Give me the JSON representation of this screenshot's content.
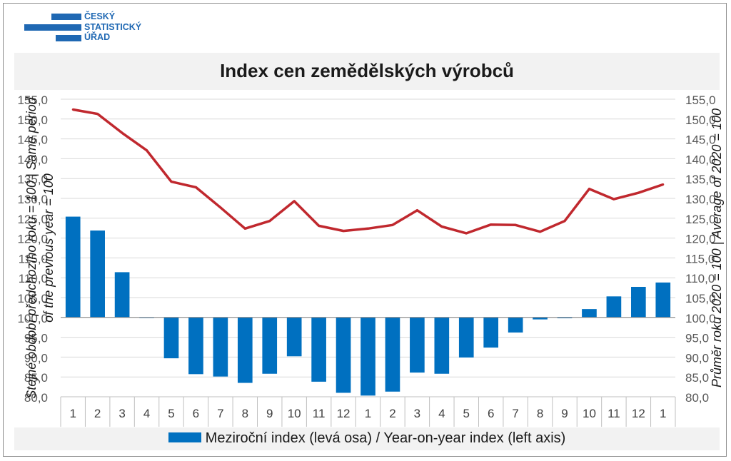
{
  "logo": {
    "lines": [
      "ČESKÝ",
      "STATISTICKÝ",
      "ÚŘAD"
    ]
  },
  "colors": {
    "bars": "#0070c0",
    "line": "#c0282e",
    "grid": "#d9d9d9",
    "band": "#f2f2f2"
  },
  "chart_data": {
    "type": "bar",
    "title": "Index cen zemědělských výrobců",
    "categories": [
      "1",
      "2",
      "3",
      "4",
      "5",
      "6",
      "7",
      "8",
      "9",
      "10",
      "11",
      "12",
      "1",
      "2",
      "3",
      "4",
      "5",
      "6",
      "7",
      "8",
      "9",
      "10",
      "11",
      "12",
      "1"
    ],
    "series": [
      {
        "name": "Meziroční index (levá osa) / Year-on-year index (left axis)",
        "type": "bar",
        "axis": "left",
        "values": [
          125.4,
          121.9,
          111.4,
          100.0,
          89.7,
          85.7,
          85.1,
          83.5,
          85.8,
          90.2,
          83.8,
          81.0,
          80.3,
          81.3,
          86.1,
          85.8,
          89.9,
          92.4,
          96.2,
          99.5,
          99.8,
          102.1,
          105.3,
          107.7,
          108.8
        ]
      },
      {
        "name": "",
        "type": "line",
        "axis": "right",
        "values": [
          152.4,
          151.3,
          146.5,
          142.1,
          134.2,
          132.8,
          127.7,
          122.4,
          124.3,
          129.3,
          123.1,
          121.8,
          122.4,
          123.3,
          127.0,
          122.9,
          121.2,
          123.4,
          123.3,
          121.6,
          124.3,
          132.4,
          129.8,
          131.4,
          133.5
        ]
      }
    ],
    "ylim_left": [
      80,
      155
    ],
    "ylim_right": [
      80,
      155
    ],
    "y_ticks_left": [
      "80,0",
      "85,0",
      "90,0",
      "95,0",
      "100,0",
      "105,0",
      "110,0",
      "115,0",
      "120,0",
      "125,0",
      "130,0",
      "135,0",
      "140,0",
      "145,0",
      "150,0",
      "155,0"
    ],
    "y_ticks_right": [
      "80,0",
      "85,0",
      "90,0",
      "95,0",
      "100,0",
      "105,0",
      "110,0",
      "115,0",
      "120,0",
      "125,0",
      "130,0",
      "135,0",
      "140,0",
      "145,0",
      "150,0",
      "155,0"
    ],
    "baseline": 100,
    "ylabel_left_line1": "Stejné období předchozího roku = 100 | Same period",
    "ylabel_left_line2": "of the previous year = 100",
    "ylabel_right": "Průměr roku 2020 = 100 | Average of 2020 = 100",
    "grid": true,
    "legend_position": "bottom"
  }
}
